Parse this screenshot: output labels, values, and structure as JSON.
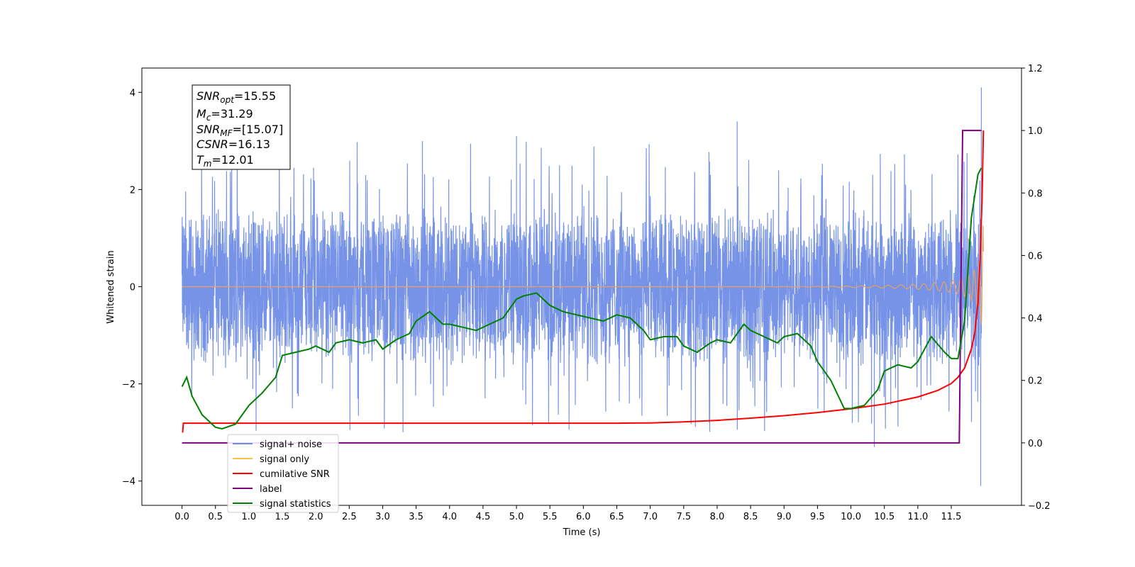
{
  "chart_data": {
    "type": "line",
    "xlabel": "Time (s)",
    "ylabel": "Whitened strain",
    "xlim": [
      -0.6,
      12.55
    ],
    "ylim": [
      -4.5,
      4.5
    ],
    "y2lim": [
      -0.2,
      1.2
    ],
    "x_ticks": [
      0.0,
      0.5,
      1.0,
      1.5,
      2.0,
      2.5,
      3.0,
      3.5,
      4.0,
      4.5,
      5.0,
      5.5,
      6.0,
      6.5,
      7.0,
      7.5,
      8.0,
      8.5,
      9.0,
      9.5,
      10.0,
      10.5,
      11.0,
      11.5
    ],
    "x_tick_labels": [
      "0.0",
      "0.5",
      "1.0",
      "1.5",
      "2.0",
      "2.5",
      "3.0",
      "3.5",
      "4.0",
      "4.5",
      "5.0",
      "5.5",
      "6.0",
      "6.5",
      "7.0",
      "7.5",
      "8.0",
      "8.5",
      "9.0",
      "9.5",
      "10.0",
      "10.5",
      "11.0",
      "11.5"
    ],
    "y_ticks": [
      -4,
      -2,
      0,
      2,
      4
    ],
    "y_tick_labels": [
      "−4",
      "−2",
      "0",
      "2",
      "4"
    ],
    "y2_ticks": [
      -0.2,
      0.0,
      0.2,
      0.4,
      0.6,
      0.8,
      1.0,
      1.2
    ],
    "y2_tick_labels": [
      "−0.2",
      "0.0",
      "0.2",
      "0.4",
      "0.6",
      "0.8",
      "1.0",
      "1.2"
    ],
    "grid": false,
    "legend_position": "lower-left",
    "annotation": {
      "lines": [
        {
          "sym": "SNR",
          "sub": "opt",
          "rest": "=15.55"
        },
        {
          "sym": "M",
          "sub": "c",
          "rest": "=31.29"
        },
        {
          "sym": "SNR",
          "sub": "MF",
          "rest": "=[15.07]"
        },
        {
          "sym": "CSNR",
          "sub": "",
          "rest": "=16.13"
        },
        {
          "sym": "T",
          "sub": "m",
          "rest": "=12.01"
        }
      ]
    },
    "legend": [
      {
        "name": "signal+ noise",
        "color": "#6f8de6"
      },
      {
        "name": "signal only",
        "color": "#ffc04c"
      },
      {
        "name": "cumilative SNR",
        "color": "#ff0000"
      },
      {
        "name": "label",
        "color": "#7f007f"
      },
      {
        "name": "signal statistics",
        "color": "#008000"
      }
    ],
    "series": [
      {
        "name": "signal+ noise",
        "axis": "left",
        "color": "#6f8de6",
        "description_values": {
          "x_start": 0.0,
          "x_end": 11.95,
          "band_upper": 1.1,
          "band_lower": -1.4,
          "notable_peaks": [
            [
              5.0,
              3.1
            ],
            [
              8.3,
              3.4
            ],
            [
              10.35,
              -3.3
            ],
            [
              11.95,
              4.1
            ],
            [
              11.94,
              -4.1
            ]
          ]
        }
      },
      {
        "name": "signal only",
        "axis": "left",
        "color": "#e8a060",
        "description_values": {
          "x_start": 0.0,
          "x_end": 11.98,
          "amp_start": 0.0,
          "amp_end": 2.0
        }
      },
      {
        "name": "cumilative SNR",
        "axis": "right",
        "color": "#ff0000",
        "x": [
          0.0,
          0.01,
          0.02,
          1.0,
          3.0,
          5.0,
          6.5,
          7.0,
          7.5,
          8.0,
          8.5,
          9.0,
          9.5,
          10.0,
          10.5,
          11.0,
          11.3,
          11.5,
          11.6,
          11.7,
          11.8,
          11.85,
          11.9,
          11.93,
          11.96,
          11.98
        ],
        "values": [
          0.035,
          0.035,
          0.063,
          0.063,
          0.063,
          0.063,
          0.063,
          0.064,
          0.067,
          0.072,
          0.079,
          0.087,
          0.097,
          0.109,
          0.124,
          0.147,
          0.168,
          0.19,
          0.21,
          0.24,
          0.3,
          0.35,
          0.45,
          0.58,
          0.78,
          1.0
        ]
      },
      {
        "name": "label",
        "axis": "right",
        "color": "#7f007f",
        "x": [
          0.0,
          11.62,
          11.67,
          11.67,
          11.95
        ],
        "values": [
          0.0,
          0.0,
          1.0,
          1.0,
          1.0
        ]
      },
      {
        "name": "signal statistics",
        "axis": "right",
        "color": "#008000",
        "x": [
          0.0,
          0.07,
          0.15,
          0.3,
          0.5,
          0.6,
          0.8,
          1.0,
          1.2,
          1.4,
          1.5,
          1.7,
          1.9,
          2.0,
          2.2,
          2.3,
          2.5,
          2.7,
          2.9,
          3.0,
          3.2,
          3.4,
          3.5,
          3.7,
          3.9,
          4.0,
          4.2,
          4.4,
          4.6,
          4.8,
          5.0,
          5.1,
          5.3,
          5.5,
          5.7,
          5.9,
          6.1,
          6.3,
          6.5,
          6.7,
          6.9,
          7.0,
          7.2,
          7.4,
          7.5,
          7.7,
          7.9,
          8.0,
          8.2,
          8.4,
          8.5,
          8.7,
          8.9,
          9.0,
          9.2,
          9.4,
          9.5,
          9.7,
          9.9,
          10.0,
          10.2,
          10.4,
          10.5,
          10.7,
          10.9,
          11.0,
          11.2,
          11.4,
          11.5,
          11.6,
          11.7,
          11.8,
          11.9,
          11.95
        ],
        "values": [
          0.18,
          0.21,
          0.15,
          0.09,
          0.05,
          0.045,
          0.06,
          0.12,
          0.16,
          0.21,
          0.28,
          0.29,
          0.3,
          0.31,
          0.29,
          0.32,
          0.33,
          0.32,
          0.33,
          0.3,
          0.33,
          0.35,
          0.39,
          0.42,
          0.38,
          0.38,
          0.37,
          0.36,
          0.38,
          0.4,
          0.46,
          0.47,
          0.48,
          0.44,
          0.42,
          0.41,
          0.4,
          0.39,
          0.41,
          0.4,
          0.36,
          0.33,
          0.34,
          0.34,
          0.31,
          0.29,
          0.32,
          0.33,
          0.32,
          0.38,
          0.36,
          0.34,
          0.32,
          0.34,
          0.35,
          0.31,
          0.26,
          0.2,
          0.11,
          0.11,
          0.12,
          0.17,
          0.23,
          0.25,
          0.24,
          0.26,
          0.34,
          0.29,
          0.27,
          0.27,
          0.39,
          0.72,
          0.86,
          0.88
        ]
      }
    ]
  }
}
